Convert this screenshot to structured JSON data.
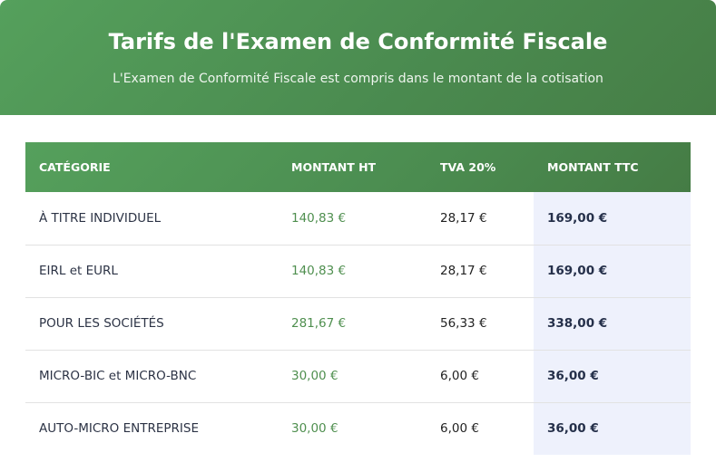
{
  "header": {
    "title": "Tarifs de l'Examen de Conformité Fiscale",
    "subtitle": "L'Examen de Conformité Fiscale est compris dans le montant de la cotisation"
  },
  "table": {
    "columns": [
      "CATÉGORIE",
      "MONTANT HT",
      "TVA 20%",
      "MONTANT TTC"
    ],
    "rows": [
      {
        "category": "À TITRE INDIVIDUEL",
        "ht": "140,83 €",
        "tva": "28,17 €",
        "ttc": "169,00 €"
      },
      {
        "category": "EIRL et EURL",
        "ht": "140,83 €",
        "tva": "28,17 €",
        "ttc": "169,00 €"
      },
      {
        "category": "POUR LES SOCIÉTÉS",
        "ht": "281,67 €",
        "tva": "56,33 €",
        "ttc": "338,00 €"
      },
      {
        "category": "MICRO-BIC et MICRO-BNC",
        "ht": "30,00 €",
        "tva": "6,00 €",
        "ttc": "36,00 €"
      },
      {
        "category": "AUTO-MICRO ENTREPRISE",
        "ht": "30,00 €",
        "tva": "6,00 €",
        "ttc": "36,00 €"
      }
    ]
  },
  "colors": {
    "header_green": "#4f9255",
    "ht_green": "#4f8f4f",
    "ttc_bg": "#eef1fc"
  }
}
